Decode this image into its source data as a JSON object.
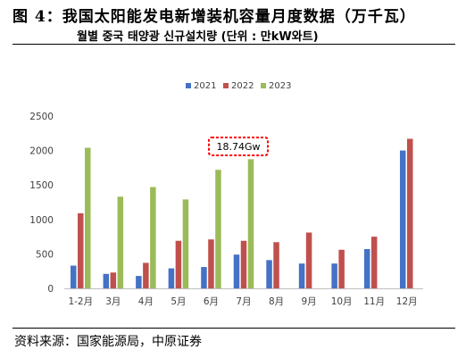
{
  "title": "图 4：我国太阳能发电新增装机容量月度数据（万千瓦）",
  "subtitle": "월별 중국 태양광 신규설치량 (단위 : 만kW와트)",
  "source": "资料来源：国家能源局，中原证券",
  "chart_data": {
    "type": "bar",
    "categories": [
      "1-2月",
      "3月",
      "4月",
      "5月",
      "6月",
      "7月",
      "8月",
      "9月",
      "10月",
      "11月",
      "12月"
    ],
    "series": [
      {
        "name": "2021",
        "color": "#4472c4",
        "values": [
          330,
          210,
          180,
          290,
          310,
          490,
          410,
          360,
          360,
          570,
          2000
        ]
      },
      {
        "name": "2022",
        "color": "#c0504d",
        "values": [
          1090,
          230,
          370,
          690,
          710,
          690,
          670,
          810,
          560,
          750,
          2170
        ]
      },
      {
        "name": "2023",
        "color": "#9bbb59",
        "values": [
          2040,
          1330,
          1470,
          1290,
          1720,
          1874,
          null,
          null,
          null,
          null,
          null
        ]
      }
    ],
    "ylim": [
      0,
      2500
    ],
    "yticks": [
      0,
      500,
      1000,
      1500,
      2000,
      2500
    ],
    "grid": false,
    "legend_position": "top",
    "annotation": {
      "text": "18.74Gw",
      "series": "2023",
      "category": "7月"
    }
  }
}
